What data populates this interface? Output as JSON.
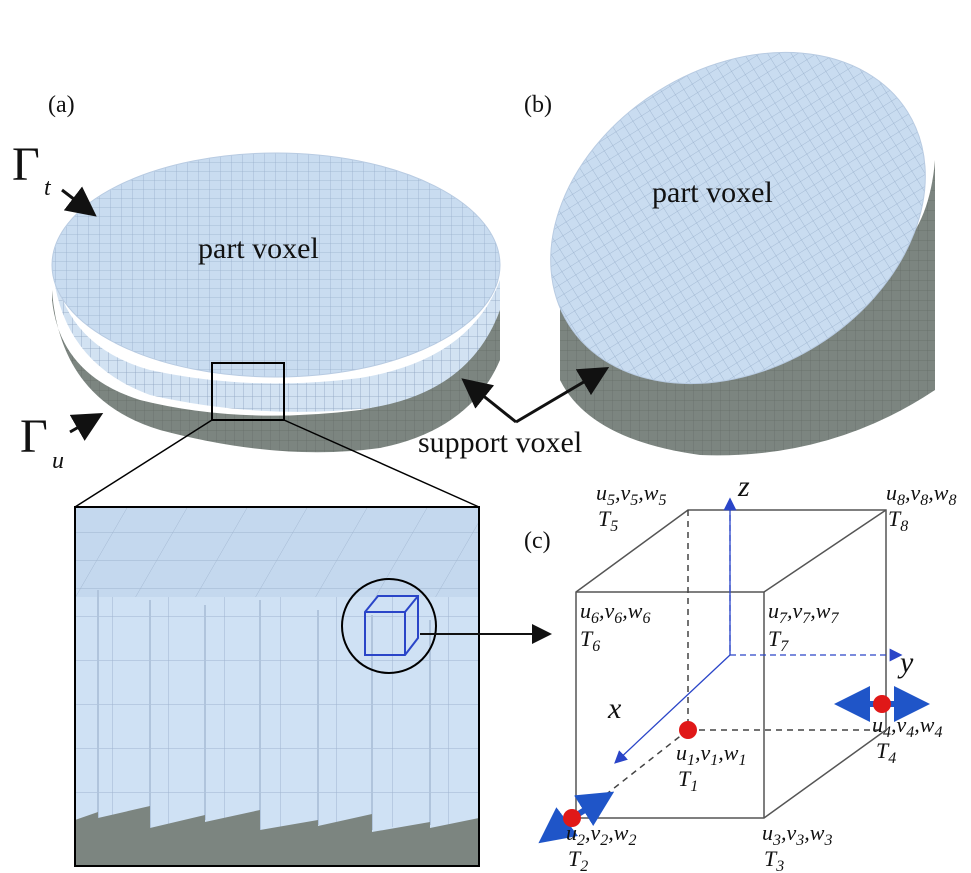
{
  "panels": {
    "a": "(a)",
    "b": "(b)",
    "c": "(c)"
  },
  "labels": {
    "part_voxel_a": "part voxel",
    "part_voxel_b": "part voxel",
    "support_voxel": "support voxel",
    "gamma_t": {
      "symbol": "Γ",
      "sub": "t"
    },
    "gamma_u": {
      "symbol": "Γ",
      "sub": "u"
    }
  },
  "axes": {
    "x": "x",
    "y": "y",
    "z": "z"
  },
  "nodes": [
    {
      "id": "1",
      "dof": [
        "u",
        "v",
        "w"
      ],
      "temp": "T"
    },
    {
      "id": "2",
      "dof": [
        "u",
        "v",
        "w"
      ],
      "temp": "T"
    },
    {
      "id": "3",
      "dof": [
        "u",
        "v",
        "w"
      ],
      "temp": "T"
    },
    {
      "id": "4",
      "dof": [
        "u",
        "v",
        "w"
      ],
      "temp": "T"
    },
    {
      "id": "5",
      "dof": [
        "u",
        "v",
        "w"
      ],
      "temp": "T"
    },
    {
      "id": "6",
      "dof": [
        "u",
        "v",
        "w"
      ],
      "temp": "T"
    },
    {
      "id": "7",
      "dof": [
        "u",
        "v",
        "w"
      ],
      "temp": "T"
    },
    {
      "id": "8",
      "dof": [
        "u",
        "v",
        "w"
      ],
      "temp": "T"
    }
  ],
  "colors": {
    "part": "#c9dcf0",
    "part_grid": "#8ea6c4",
    "support": "#7c8580",
    "support_dark": "#5f6762",
    "voxel_highlight": "#2a45c8",
    "node_fixed": "#e01818",
    "arrow_blue": "#1f55c8"
  }
}
